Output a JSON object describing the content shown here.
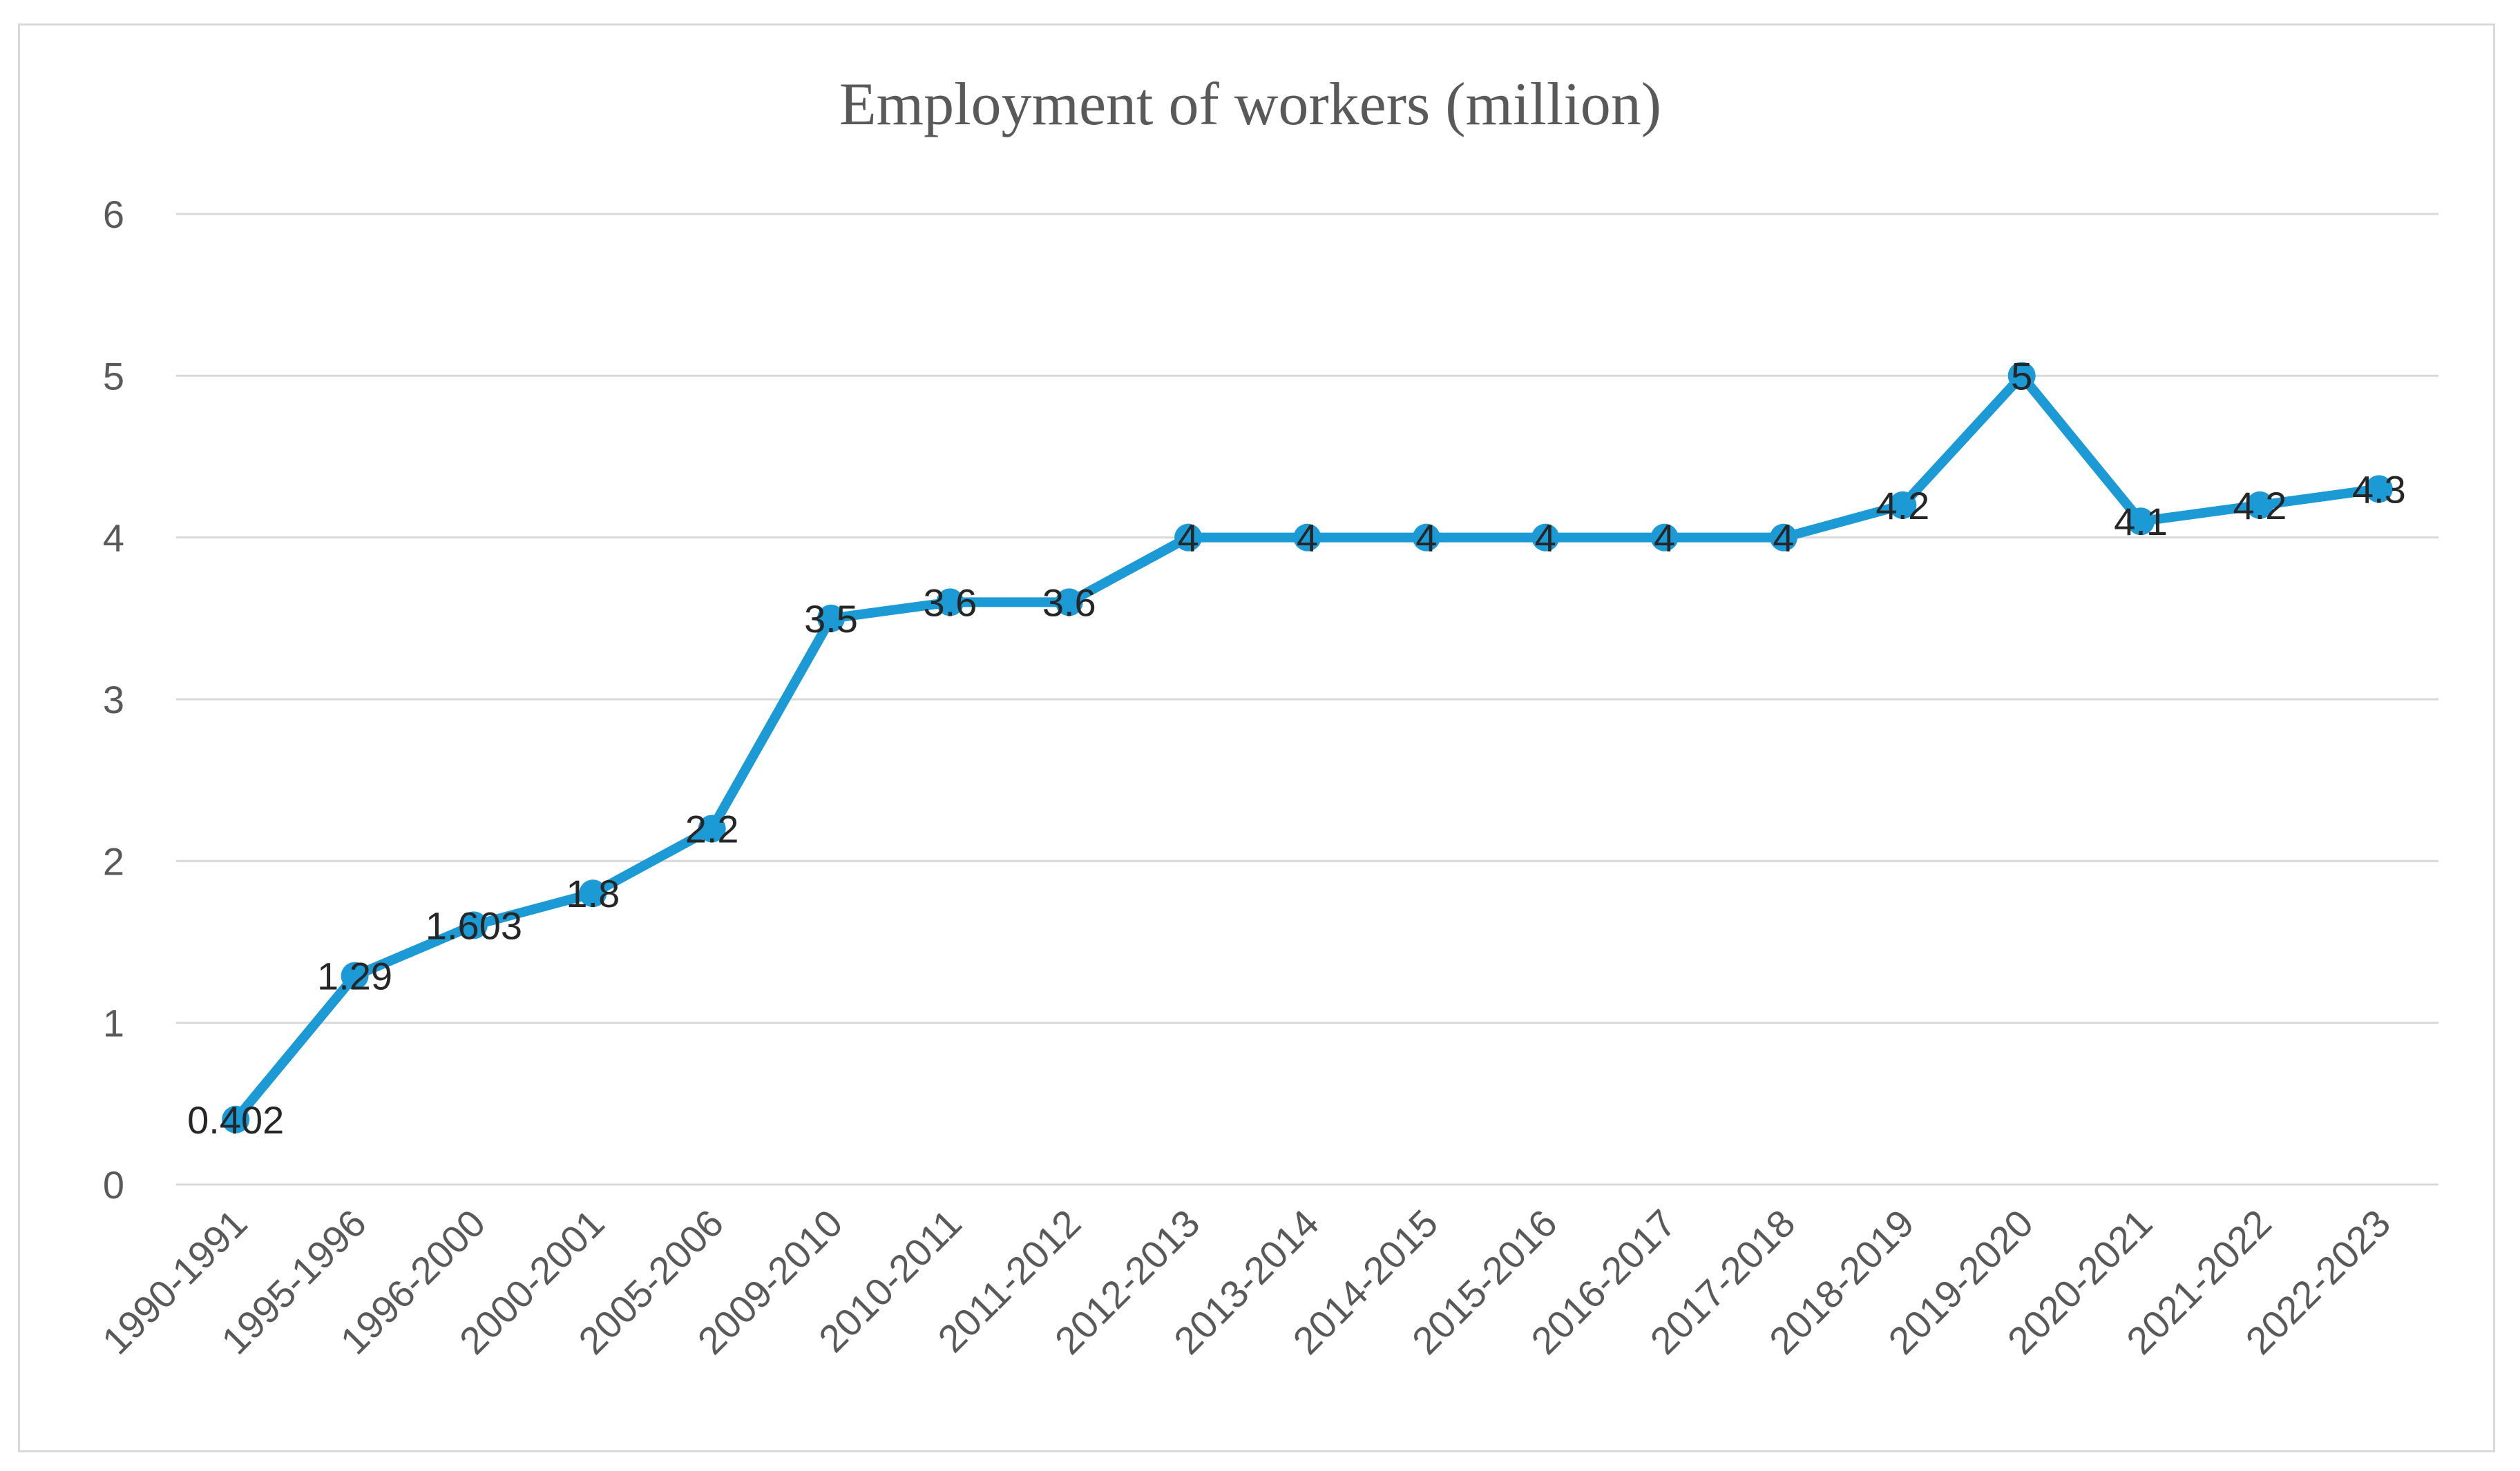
{
  "chart_data": {
    "type": "line",
    "title": "Employment of workers (million)",
    "xlabel": "",
    "ylabel": "",
    "categories": [
      "1990-1991",
      "1995-1996",
      "1996-2000",
      "2000-2001",
      "2005-2006",
      "2009-2010",
      "2010-2011",
      "2011-2012",
      "2012-2013",
      "2013-2014",
      "2014-2015",
      "2015-2016",
      "2016-2017",
      "2017-2018",
      "2018-2019",
      "2019-2020",
      "2020-2021",
      "2021-2022",
      "2022-2023"
    ],
    "series": [
      {
        "name": "",
        "values": [
          0.402,
          1.29,
          1.603,
          1.8,
          2.2,
          3.5,
          3.6,
          3.6,
          4,
          4,
          4,
          4,
          4,
          4,
          4.2,
          5,
          4.1,
          4.2,
          4.3
        ],
        "labels": [
          "0.402",
          "1.29",
          "1.603",
          "1.8",
          "2.2",
          "3.5",
          "3.6",
          "3.6",
          "4",
          "4",
          "4",
          "4",
          "4",
          "4",
          "4.2",
          "5",
          "4.1",
          "4.2",
          "4.3"
        ]
      }
    ],
    "ylim": [
      0,
      6
    ],
    "yticks": [
      "0",
      "1",
      "2",
      "3",
      "4",
      "5",
      "6"
    ],
    "grid": true,
    "legend": "none",
    "colors": {
      "line": "#1b9ad6",
      "grid": "#d9d9d9",
      "frame": "#d9d9d9",
      "text": "#595959"
    }
  }
}
